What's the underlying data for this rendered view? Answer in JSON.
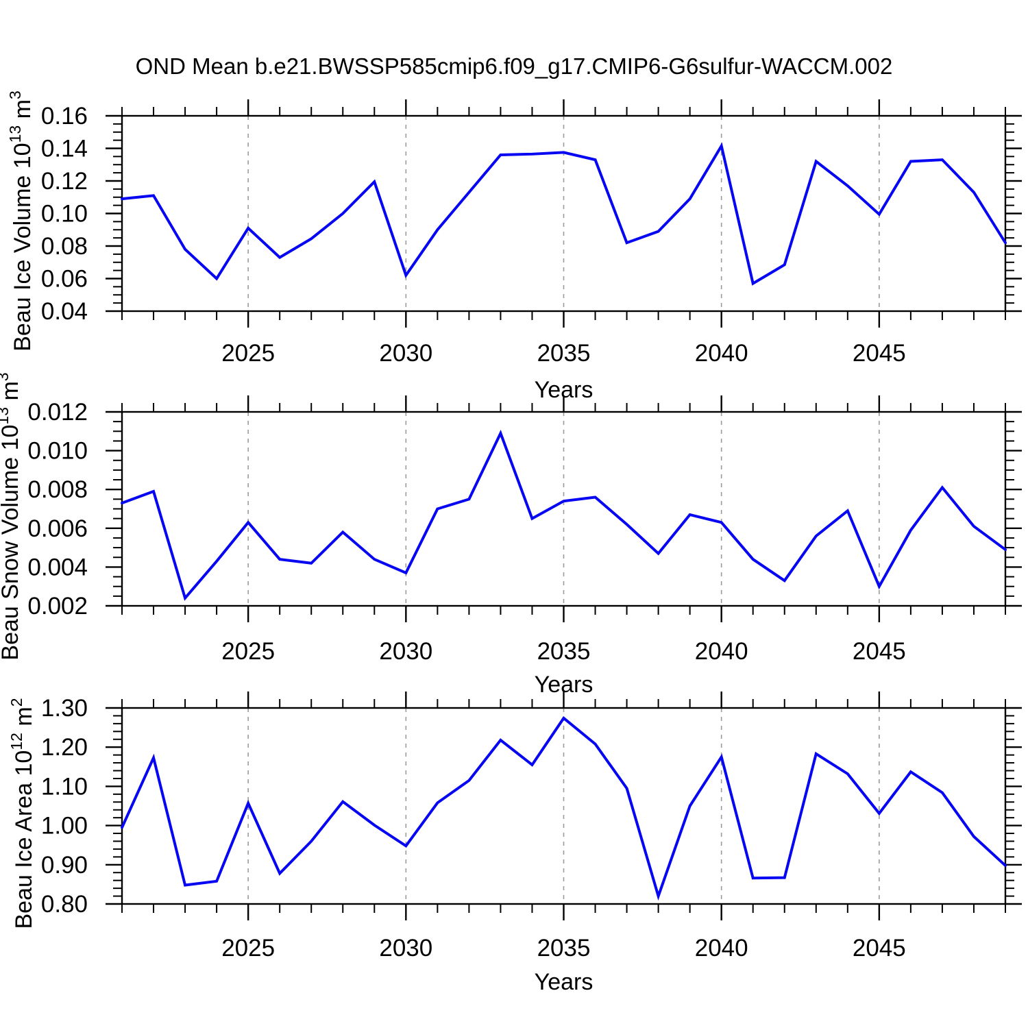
{
  "title": "OND Mean b.e21.BWSSP585cmip6.f09_g17.CMIP6-G6sulfur-WACCM.002",
  "colors": {
    "line": "#0606f2",
    "grid": "#9b9b9b",
    "axis": "#000000",
    "text": "#000000",
    "background": "#ffffff"
  },
  "years": [
    2021,
    2022,
    2023,
    2024,
    2025,
    2026,
    2027,
    2028,
    2029,
    2030,
    2031,
    2032,
    2033,
    2034,
    2035,
    2036,
    2037,
    2038,
    2039,
    2040,
    2041,
    2042,
    2043,
    2044,
    2045,
    2046,
    2047,
    2048,
    2049
  ],
  "chart_data": [
    {
      "type": "line",
      "name": "beau-ice-volume",
      "ylabel_text": "Beau Ice Volume 10^13 m^3",
      "ylabel_parts": [
        {
          "text": "Beau Ice Volume 10",
          "sup": false
        },
        {
          "text": "13",
          "sup": true
        },
        {
          "text": " m",
          "sup": false
        },
        {
          "text": "3",
          "sup": true
        }
      ],
      "xlabel": "Years",
      "xlim": [
        2021,
        2049
      ],
      "ylim": [
        0.04,
        0.16
      ],
      "ytick_values": [
        0.04,
        0.06,
        0.08,
        0.1,
        0.12,
        0.14,
        0.16
      ],
      "ytick_labels": [
        "0.04",
        "0.06",
        "0.08",
        "0.10",
        "0.12",
        "0.14",
        "0.16"
      ],
      "y_minor_step": 0.005,
      "xtick_values": [
        2025,
        2030,
        2035,
        2040,
        2045
      ],
      "xtick_labels": [
        "2025",
        "2030",
        "2035",
        "2040",
        "2045"
      ],
      "x_minor_step": 1,
      "grid": "dashed-vertical-at-major-xticks",
      "legend": "none",
      "values": [
        0.109,
        0.111,
        0.078,
        0.06,
        0.091,
        0.073,
        0.0845,
        0.1,
        0.1195,
        0.062,
        0.09,
        0.113,
        0.136,
        0.1365,
        0.1375,
        0.133,
        0.082,
        0.089,
        0.109,
        0.1415,
        0.057,
        0.0685,
        0.132,
        0.117,
        0.0995,
        0.132,
        0.133,
        0.113,
        0.082
      ]
    },
    {
      "type": "line",
      "name": "beau-snow-volume",
      "ylabel_text": "Beau Snow Volume 10^13 m^3",
      "ylabel_parts": [
        {
          "text": "Beau Snow Volume 10",
          "sup": false
        },
        {
          "text": "13",
          "sup": true
        },
        {
          "text": " m",
          "sup": false
        },
        {
          "text": "3",
          "sup": true
        }
      ],
      "xlabel": "Years",
      "xlim": [
        2021,
        2049
      ],
      "ylim": [
        0.002,
        0.012
      ],
      "ytick_values": [
        0.002,
        0.004,
        0.006,
        0.008,
        0.01,
        0.012
      ],
      "ytick_labels": [
        "0.002",
        "0.004",
        "0.006",
        "0.008",
        "0.010",
        "0.012"
      ],
      "y_minor_step": 0.0005,
      "xtick_values": [
        2025,
        2030,
        2035,
        2040,
        2045
      ],
      "xtick_labels": [
        "2025",
        "2030",
        "2035",
        "2040",
        "2045"
      ],
      "x_minor_step": 1,
      "grid": "dashed-vertical-at-major-xticks",
      "legend": "none",
      "values": [
        0.0073,
        0.0079,
        0.0024,
        0.0043,
        0.0063,
        0.0044,
        0.0042,
        0.0058,
        0.0044,
        0.0037,
        0.007,
        0.0075,
        0.0109,
        0.0065,
        0.0074,
        0.0076,
        0.0062,
        0.0047,
        0.0067,
        0.0063,
        0.0044,
        0.0033,
        0.0056,
        0.0069,
        0.003,
        0.0059,
        0.0081,
        0.0061,
        0.0049
      ]
    },
    {
      "type": "line",
      "name": "beau-ice-area",
      "ylabel_text": "Beau Ice Area 10^12 m^2",
      "ylabel_parts": [
        {
          "text": "Beau Ice Area 10",
          "sup": false
        },
        {
          "text": "12",
          "sup": true
        },
        {
          "text": " m",
          "sup": false
        },
        {
          "text": "2",
          "sup": true
        }
      ],
      "xlabel": "Years",
      "xlim": [
        2021,
        2049
      ],
      "ylim": [
        0.8,
        1.3
      ],
      "ytick_values": [
        0.8,
        0.9,
        1.0,
        1.1,
        1.2,
        1.3
      ],
      "ytick_labels": [
        "0.80",
        "0.90",
        "1.00",
        "1.10",
        "1.20",
        "1.30"
      ],
      "y_minor_step": 0.02,
      "xtick_values": [
        2025,
        2030,
        2035,
        2040,
        2045
      ],
      "xtick_labels": [
        "2025",
        "2030",
        "2035",
        "2040",
        "2045"
      ],
      "x_minor_step": 1,
      "grid": "dashed-vertical-at-major-xticks",
      "legend": "none",
      "values": [
        0.995,
        1.173,
        0.848,
        0.858,
        1.057,
        0.878,
        0.96,
        1.061,
        1.001,
        0.948,
        1.058,
        1.115,
        1.218,
        1.155,
        1.274,
        1.208,
        1.095,
        0.82,
        1.05,
        1.175,
        0.866,
        0.867,
        1.183,
        1.132,
        1.031,
        1.137,
        1.084,
        0.972,
        0.898
      ]
    }
  ]
}
